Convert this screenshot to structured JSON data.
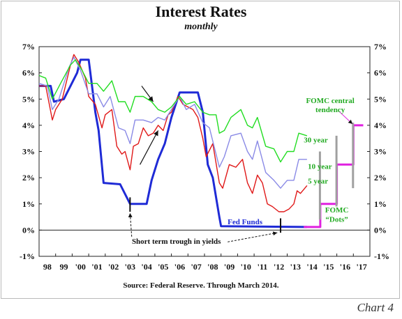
{
  "header": {
    "title": "Interest Rates",
    "subtitle": "monthly"
  },
  "footer": {
    "source": "Source: Federal Reserve. Through March 2014.",
    "chart_label": "Chart 4"
  },
  "colors": {
    "fed_funds": "#1f2bd6",
    "five_year": "#e01818",
    "ten_year": "#8a8ae6",
    "thirty_year": "#22dd22",
    "fomc_dots": "#e020e0",
    "tendency": "#a0a0a0"
  },
  "chart_data": {
    "type": "line",
    "title": "Interest Rates",
    "subtitle": "monthly",
    "xlim": [
      1998.0,
      2018.0
    ],
    "ylim": [
      -1,
      7
    ],
    "grid": false,
    "x_tick_labels": [
      "98",
      "99",
      "'00",
      "'01",
      "'02",
      "'03",
      "'04",
      "'05",
      "'06",
      "'07",
      "'08",
      "'09",
      "'10",
      "'11",
      "'12",
      "'13",
      "'14",
      "'15",
      "'16",
      "'17"
    ],
    "y_tick_labels": [
      "-1%",
      "0%",
      "1%",
      "2%",
      "3%",
      "4%",
      "5%",
      "6%",
      "7%"
    ],
    "y_tick_values": [
      -1,
      0,
      1,
      2,
      3,
      4,
      5,
      6,
      7
    ],
    "series": [
      {
        "name": "Fed Funds",
        "color": "#1f2bd6",
        "x": [
          1998.0,
          1998.7,
          1998.9,
          1999.5,
          1999.9,
          2000.3,
          2000.5,
          2001.0,
          2001.4,
          2001.6,
          2001.9,
          2002.9,
          2003.5,
          2004.5,
          2004.8,
          2005.2,
          2005.6,
          2006.0,
          2006.5,
          2007.6,
          2007.9,
          2008.2,
          2008.5,
          2008.9,
          2009.0,
          2014.2
        ],
        "y": [
          5.5,
          5.5,
          4.9,
          5.0,
          5.5,
          6.0,
          6.5,
          6.5,
          4.5,
          3.8,
          1.8,
          1.75,
          1.0,
          1.0,
          1.9,
          2.7,
          3.3,
          4.3,
          5.25,
          5.25,
          4.5,
          2.5,
          2.0,
          0.5,
          0.15,
          0.12
        ]
      },
      {
        "name": "5 year",
        "color": "#e01818",
        "x": [
          1998.0,
          1998.4,
          1998.8,
          1999.0,
          1999.4,
          1999.9,
          2000.1,
          2000.4,
          2000.8,
          2001.0,
          2001.4,
          2001.8,
          2002.0,
          2002.4,
          2002.7,
          2003.0,
          2003.2,
          2003.5,
          2003.7,
          2004.0,
          2004.3,
          2004.6,
          2004.9,
          2005.2,
          2005.5,
          2005.8,
          2006.0,
          2006.4,
          2006.7,
          2007.0,
          2007.3,
          2007.6,
          2007.9,
          2008.1,
          2008.5,
          2008.9,
          2009.1,
          2009.5,
          2009.9,
          2010.3,
          2010.6,
          2010.9,
          2011.2,
          2011.5,
          2011.8,
          2012.1,
          2012.5,
          2012.8,
          2013.1,
          2013.4,
          2013.6,
          2013.8,
          2014.2
        ],
        "y": [
          5.5,
          5.5,
          4.2,
          4.6,
          5.0,
          6.3,
          6.7,
          6.4,
          5.8,
          5.1,
          4.8,
          3.9,
          4.4,
          4.6,
          3.2,
          2.9,
          3.0,
          2.3,
          3.2,
          3.3,
          3.9,
          3.6,
          3.7,
          4.0,
          3.8,
          4.4,
          4.5,
          5.1,
          4.8,
          4.7,
          4.6,
          4.3,
          3.5,
          2.8,
          3.3,
          1.8,
          1.6,
          2.5,
          2.4,
          2.7,
          1.8,
          1.4,
          2.1,
          1.8,
          1.0,
          0.9,
          0.7,
          0.7,
          0.8,
          1.0,
          1.5,
          1.4,
          1.7
        ]
      },
      {
        "name": "10 year",
        "color": "#8a8ae6",
        "x": [
          1998.0,
          1998.5,
          1998.8,
          1999.2,
          1999.8,
          2000.1,
          2000.5,
          2001.0,
          2001.5,
          2001.9,
          2002.3,
          2002.8,
          2003.2,
          2003.5,
          2003.8,
          2004.3,
          2004.8,
          2005.2,
          2005.6,
          2006.0,
          2006.5,
          2006.9,
          2007.4,
          2007.9,
          2008.3,
          2008.9,
          2009.2,
          2009.6,
          2010.2,
          2010.6,
          2010.9,
          2011.2,
          2011.7,
          2012.2,
          2012.6,
          2013.0,
          2013.4,
          2013.7,
          2014.2
        ],
        "y": [
          5.6,
          5.5,
          4.6,
          5.0,
          6.2,
          6.6,
          6.1,
          5.2,
          5.2,
          4.7,
          5.1,
          3.9,
          3.8,
          3.3,
          4.2,
          4.2,
          4.1,
          4.3,
          4.2,
          4.6,
          5.1,
          4.6,
          4.8,
          4.1,
          3.9,
          2.4,
          2.8,
          3.6,
          3.7,
          3.0,
          2.7,
          3.4,
          2.2,
          1.9,
          1.6,
          1.9,
          1.9,
          2.7,
          2.7
        ]
      },
      {
        "name": "30 year",
        "color": "#22dd22",
        "x": [
          1998.0,
          1998.4,
          1998.8,
          1999.3,
          1999.9,
          2000.2,
          2000.6,
          2001.0,
          2001.5,
          2001.9,
          2002.4,
          2002.8,
          2003.2,
          2003.5,
          2003.8,
          2004.3,
          2004.8,
          2005.2,
          2005.6,
          2006.0,
          2006.5,
          2006.9,
          2007.4,
          2007.9,
          2008.3,
          2008.7,
          2008.9,
          2009.2,
          2009.6,
          2010.2,
          2010.6,
          2010.9,
          2011.2,
          2011.7,
          2012.2,
          2012.6,
          2013.0,
          2013.4,
          2013.7,
          2014.2
        ],
        "y": [
          5.9,
          5.8,
          5.0,
          5.6,
          6.3,
          6.5,
          6.1,
          5.6,
          5.6,
          5.3,
          5.7,
          4.9,
          4.9,
          4.5,
          5.1,
          5.1,
          4.9,
          4.6,
          4.5,
          4.7,
          5.1,
          4.8,
          4.9,
          4.5,
          4.4,
          4.4,
          3.7,
          3.8,
          4.3,
          4.6,
          4.0,
          3.9,
          4.3,
          3.2,
          3.1,
          2.6,
          3.0,
          3.0,
          3.7,
          3.6
        ]
      },
      {
        "name": "FOMC \"Dots\"",
        "color": "#e020e0",
        "x": [
          2014.0,
          2015.0,
          2015.0,
          2016.0,
          2016.0,
          2017.0,
          2017.0,
          2017.6
        ],
        "y": [
          0.12,
          0.12,
          1.0,
          1.0,
          2.5,
          2.5,
          4.0,
          4.0
        ]
      },
      {
        "name": "FOMC central tendency",
        "color": "#a0a0a0",
        "x": [
          2015.0,
          2016.0,
          2017.0
        ],
        "y_low": [
          0.4,
          0.9,
          1.6
        ],
        "y_high": [
          3.0,
          3.6,
          4.1
        ]
      }
    ],
    "annotations": {
      "fed_funds": "Fed Funds",
      "thirty_year": "30 year",
      "ten_year": "10 year",
      "five_year": "5 year",
      "fomc_tendency_line1": "FOMC central",
      "fomc_tendency_line2": "tendency",
      "fomc_dots_line1": "FOMC",
      "fomc_dots_line2": "“Dots”",
      "trough": "Short term trough in yields"
    }
  }
}
